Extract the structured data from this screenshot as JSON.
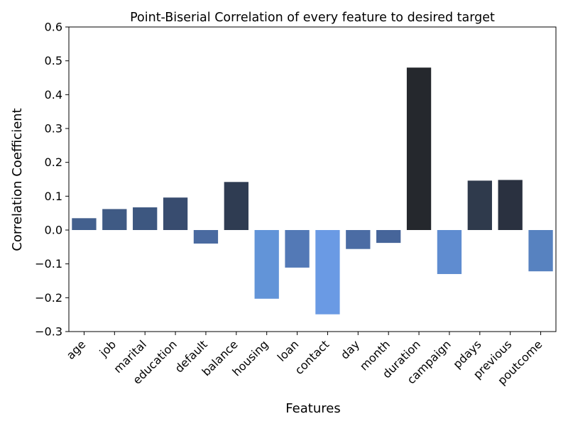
{
  "chart_data": {
    "type": "bar",
    "title": "Point-Biserial Correlation of every feature to desired target",
    "xlabel": "Features",
    "ylabel": "Correlation Coefficient",
    "ylim": [
      -0.3,
      0.6
    ],
    "yticks": [
      -0.3,
      -0.2,
      -0.1,
      0.0,
      0.1,
      0.2,
      0.3,
      0.4,
      0.5,
      0.6
    ],
    "ytick_labels": [
      "−0.3",
      "−0.2",
      "−0.1",
      "0.0",
      "0.1",
      "0.2",
      "0.3",
      "0.4",
      "0.5",
      "0.6"
    ],
    "grid": false,
    "categories": [
      "age",
      "job",
      "marital",
      "education",
      "default",
      "balance",
      "housing",
      "loan",
      "contact",
      "day",
      "month",
      "duration",
      "campaign",
      "pdays",
      "previous",
      "poutcome"
    ],
    "values": [
      0.035,
      0.062,
      0.067,
      0.096,
      -0.04,
      0.142,
      -0.203,
      -0.111,
      -0.249,
      -0.056,
      -0.038,
      0.48,
      -0.13,
      0.146,
      0.148,
      -0.122
    ],
    "colors": [
      "#43608e",
      "#3f5a84",
      "#3d5780",
      "#384c6f",
      "#4a6aa0",
      "#2f3c52",
      "#6294d8",
      "#5379b6",
      "#6a9ae4",
      "#4b6ca4",
      "#46659a",
      "#25282d",
      "#5f8cd0",
      "#2f3a4c",
      "#2a3140",
      "#5782c0"
    ]
  }
}
